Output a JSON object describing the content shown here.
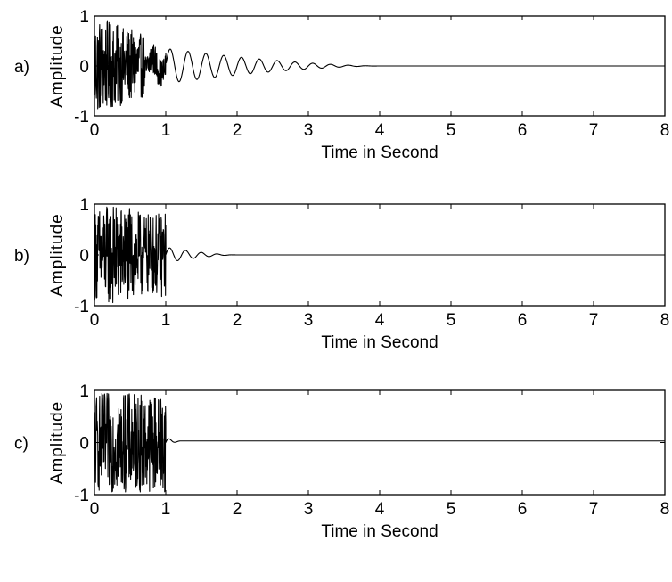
{
  "chart_data": [
    {
      "type": "line",
      "panel_label": "a)",
      "xlabel": "Time in Second",
      "ylabel": "Amplitude",
      "xlim": [
        0,
        8
      ],
      "ylim": [
        -1,
        1
      ],
      "xticks": [
        "0",
        "1",
        "2",
        "3",
        "4",
        "5",
        "6",
        "7",
        "8"
      ],
      "yticks": [
        "-1",
        "0",
        "1"
      ],
      "grid": false,
      "signal": {
        "chaotic_end": 1.0,
        "decay_end": 4.0,
        "ring_frequency": 4,
        "ring_amplitude_at_1s": 0.35
      }
    },
    {
      "type": "line",
      "panel_label": "b)",
      "xlabel": "Time in Second",
      "ylabel": "Amplitude",
      "xlim": [
        0,
        8
      ],
      "ylim": [
        -1,
        1
      ],
      "xticks": [
        "0",
        "1",
        "2",
        "3",
        "4",
        "5",
        "6",
        "7",
        "8"
      ],
      "yticks": [
        "-1",
        "0",
        "1"
      ],
      "grid": false,
      "signal": {
        "chaotic_end": 1.0,
        "decay_end": 2.0,
        "ring_frequency": 4.5,
        "ring_amplitude_at_1s": 0.15
      }
    },
    {
      "type": "line",
      "panel_label": "c)",
      "xlabel": "Time in Second",
      "ylabel": "Amplitude",
      "xlim": [
        0,
        8
      ],
      "ylim": [
        -1,
        1
      ],
      "xticks": [
        "0",
        "1",
        "2",
        "3",
        "4",
        "5",
        "6",
        "7",
        "8"
      ],
      "yticks": [
        "-1",
        "0",
        "1"
      ],
      "grid": false,
      "signal": {
        "chaotic_end": 1.0,
        "decay_end": 1.2,
        "ring_frequency": 5,
        "ring_amplitude_at_1s": 0.1,
        "dc_offset": 0.03
      }
    }
  ]
}
